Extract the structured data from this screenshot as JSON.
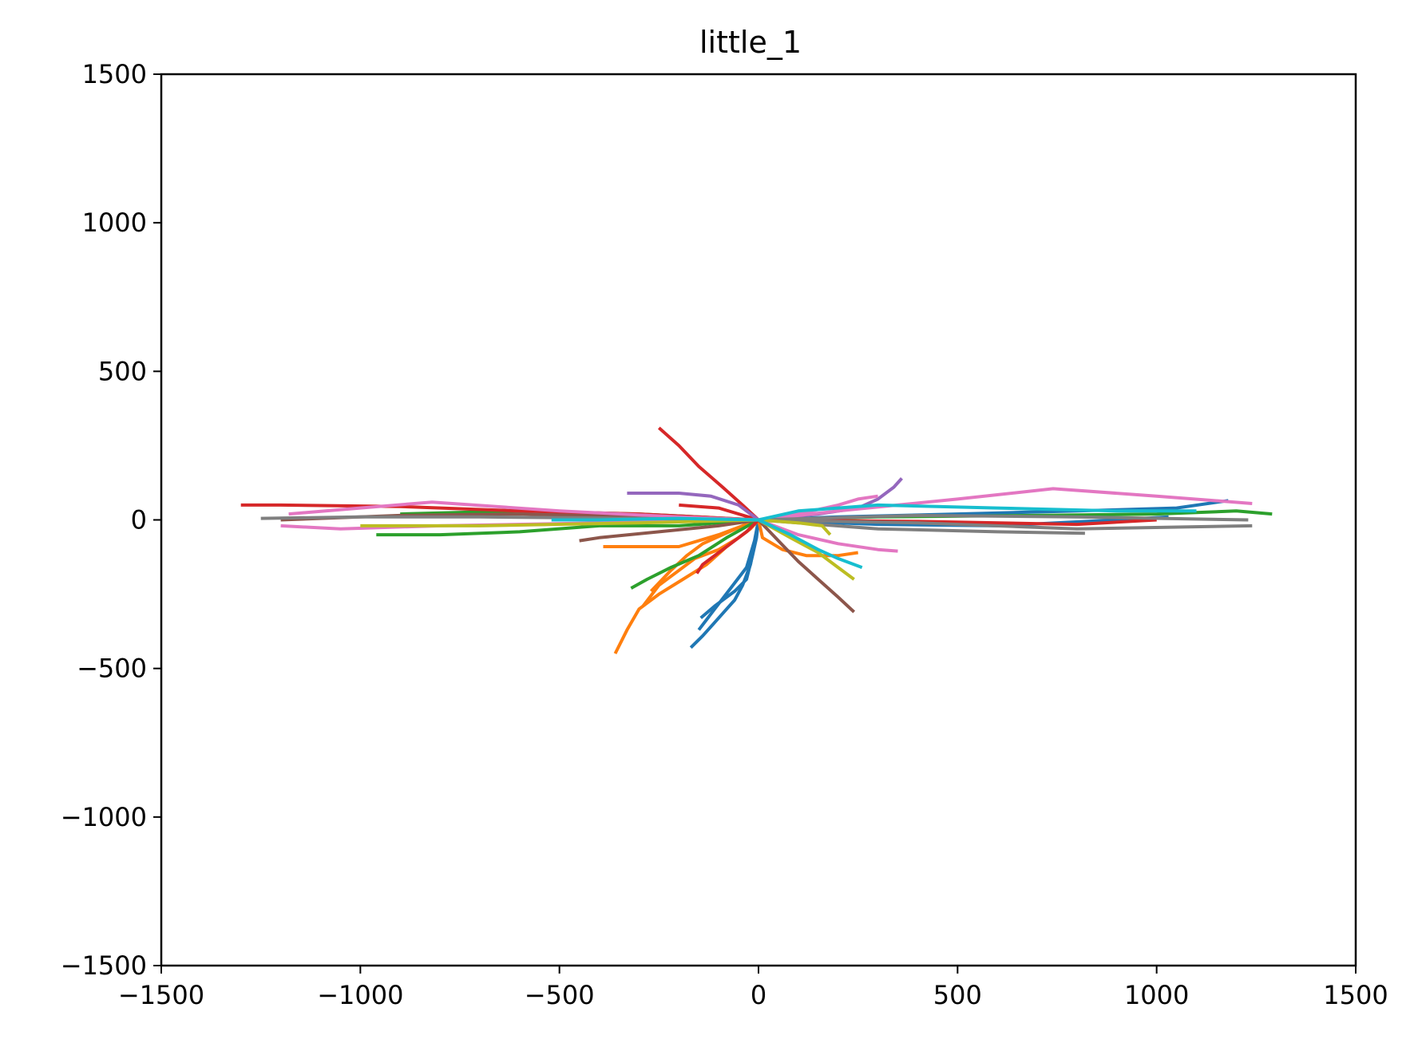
{
  "chart_data": {
    "type": "line",
    "title": "little_1",
    "xlabel": "",
    "ylabel": "",
    "xlim": [
      -1500,
      1500
    ],
    "ylim": [
      -1500,
      1500
    ],
    "grid": false,
    "xticks": [
      -1500,
      -1000,
      -500,
      0,
      500,
      1000,
      1500
    ],
    "yticks": [
      -1500,
      -1000,
      -500,
      0,
      500,
      1000,
      1500
    ],
    "xtick_labels": [
      "−1500",
      "−1000",
      "−500",
      "0",
      "500",
      "1000",
      "1500"
    ],
    "ytick_labels": [
      "−1500",
      "−1000",
      "−500",
      "0",
      "500",
      "1000",
      "1500"
    ],
    "series": [
      {
        "color": "#1f77b4",
        "x": [
          0,
          -10,
          -20,
          -40,
          -60,
          -100,
          -140,
          -170
        ],
        "y": [
          0,
          -80,
          -150,
          -220,
          -270,
          -330,
          -390,
          -430
        ]
      },
      {
        "color": "#1f77b4",
        "x": [
          0,
          -5,
          -15,
          -30,
          -60,
          -110,
          -145
        ],
        "y": [
          0,
          -60,
          -120,
          -200,
          -240,
          -290,
          -330
        ]
      },
      {
        "color": "#1f77b4",
        "x": [
          0,
          -10,
          -30,
          -70,
          -110,
          -150
        ],
        "y": [
          0,
          -70,
          -160,
          -230,
          -300,
          -370
        ]
      },
      {
        "color": "#1f77b4",
        "x": [
          0,
          200,
          500,
          800,
          1050,
          1180
        ],
        "y": [
          0,
          10,
          20,
          30,
          40,
          65
        ]
      },
      {
        "color": "#1f77b4",
        "x": [
          0,
          300,
          600,
          900,
          1030
        ],
        "y": [
          0,
          -15,
          -20,
          0,
          10
        ]
      },
      {
        "color": "#ff7f0e",
        "x": [
          0,
          -30,
          -80,
          -130,
          -190,
          -250,
          -300,
          -330,
          -360
        ],
        "y": [
          0,
          -40,
          -90,
          -150,
          -200,
          -250,
          -300,
          -370,
          -450
        ]
      },
      {
        "color": "#ff7f0e",
        "x": [
          0,
          -20,
          -50,
          -100,
          -160,
          -200,
          -250,
          -290
        ],
        "y": [
          0,
          -30,
          -60,
          -100,
          -130,
          -170,
          -220,
          -290
        ]
      },
      {
        "color": "#ff7f0e",
        "x": [
          0,
          -40,
          -90,
          -140,
          -180,
          -220,
          -270
        ],
        "y": [
          0,
          -20,
          -50,
          -80,
          -120,
          -170,
          -240
        ]
      },
      {
        "color": "#ff7f0e",
        "x": [
          0,
          -100,
          -200,
          -300,
          -390
        ],
        "y": [
          0,
          -50,
          -90,
          -90,
          -90
        ]
      },
      {
        "color": "#ff7f0e",
        "x": [
          0,
          10,
          60,
          120,
          200,
          250
        ],
        "y": [
          0,
          -60,
          -100,
          -120,
          -120,
          -110
        ]
      },
      {
        "color": "#2ca02c",
        "x": [
          0,
          -80,
          -150,
          -220,
          -280,
          -320
        ],
        "y": [
          0,
          -60,
          -120,
          -160,
          -200,
          -230
        ]
      },
      {
        "color": "#2ca02c",
        "x": [
          0,
          -200,
          -400,
          -600,
          -800,
          -960
        ],
        "y": [
          0,
          -20,
          -20,
          -40,
          -50,
          -50
        ]
      },
      {
        "color": "#2ca02c",
        "x": [
          0,
          300,
          700,
          1000,
          1200,
          1290
        ],
        "y": [
          0,
          10,
          15,
          20,
          30,
          20
        ]
      },
      {
        "color": "#2ca02c",
        "x": [
          0,
          -300,
          -600,
          -900
        ],
        "y": [
          0,
          20,
          30,
          20
        ]
      },
      {
        "color": "#d62728",
        "x": [
          0,
          -40,
          -90,
          -150,
          -200,
          -250
        ],
        "y": [
          0,
          50,
          110,
          180,
          250,
          310
        ]
      },
      {
        "color": "#d62728",
        "x": [
          0,
          -30,
          -70,
          -110,
          -140,
          -155
        ],
        "y": [
          0,
          -40,
          -80,
          -120,
          -150,
          -180
        ]
      },
      {
        "color": "#d62728",
        "x": [
          0,
          -300,
          -600,
          -900,
          -1200,
          -1300
        ],
        "y": [
          0,
          20,
          30,
          45,
          50,
          50
        ]
      },
      {
        "color": "#d62728",
        "x": [
          0,
          400,
          800,
          1000
        ],
        "y": [
          0,
          -5,
          -15,
          0
        ]
      },
      {
        "color": "#d62728",
        "x": [
          0,
          -100,
          -200
        ],
        "y": [
          0,
          40,
          50
        ]
      },
      {
        "color": "#9467bd",
        "x": [
          0,
          -50,
          -120,
          -200,
          -270,
          -330
        ],
        "y": [
          0,
          50,
          80,
          90,
          90,
          90
        ]
      },
      {
        "color": "#9467bd",
        "x": [
          0,
          150,
          250,
          300,
          340,
          360
        ],
        "y": [
          0,
          20,
          40,
          70,
          110,
          140
        ]
      },
      {
        "color": "#8c564b",
        "x": [
          0,
          50,
          100,
          150,
          200,
          240
        ],
        "y": [
          0,
          -70,
          -140,
          -200,
          -260,
          -310
        ]
      },
      {
        "color": "#8c564b",
        "x": [
          0,
          -100,
          -250,
          -400,
          -450
        ],
        "y": [
          0,
          -20,
          -40,
          -60,
          -70
        ]
      },
      {
        "color": "#8c564b",
        "x": [
          0,
          -300,
          -600,
          -900,
          -1100,
          -1200
        ],
        "y": [
          0,
          10,
          20,
          15,
          5,
          0
        ]
      },
      {
        "color": "#e377c2",
        "x": [
          0,
          200,
          500,
          740,
          1000,
          1240
        ],
        "y": [
          0,
          30,
          70,
          105,
          80,
          55
        ]
      },
      {
        "color": "#e377c2",
        "x": [
          0,
          -200,
          -500,
          -820,
          -1000,
          -1180
        ],
        "y": [
          0,
          10,
          30,
          60,
          40,
          20
        ]
      },
      {
        "color": "#e377c2",
        "x": [
          0,
          100,
          200,
          300,
          350
        ],
        "y": [
          0,
          -50,
          -80,
          -100,
          -105
        ]
      },
      {
        "color": "#e377c2",
        "x": [
          0,
          100,
          200,
          250,
          300
        ],
        "y": [
          0,
          20,
          50,
          70,
          80
        ]
      },
      {
        "color": "#e377c2",
        "x": [
          0,
          -400,
          -800,
          -1050,
          -1200
        ],
        "y": [
          0,
          -10,
          -20,
          -30,
          -20
        ]
      },
      {
        "color": "#7f7f7f",
        "x": [
          0,
          300,
          600,
          820
        ],
        "y": [
          0,
          -30,
          -40,
          -45
        ]
      },
      {
        "color": "#7f7f7f",
        "x": [
          0,
          400,
          800,
          1240
        ],
        "y": [
          0,
          -10,
          -30,
          -20
        ]
      },
      {
        "color": "#7f7f7f",
        "x": [
          0,
          -300,
          -700,
          -1000,
          -1250
        ],
        "y": [
          0,
          5,
          10,
          10,
          5
        ]
      },
      {
        "color": "#7f7f7f",
        "x": [
          0,
          400,
          800,
          1230
        ],
        "y": [
          0,
          15,
          10,
          0
        ]
      },
      {
        "color": "#bcbd22",
        "x": [
          0,
          80,
          150,
          200,
          240
        ],
        "y": [
          0,
          -60,
          -110,
          -160,
          -200
        ]
      },
      {
        "color": "#bcbd22",
        "x": [
          0,
          100,
          160,
          180
        ],
        "y": [
          0,
          -10,
          -20,
          -50
        ]
      },
      {
        "color": "#bcbd22",
        "x": [
          0,
          -300,
          -700,
          -1000
        ],
        "y": [
          0,
          -10,
          -20,
          -20
        ]
      },
      {
        "color": "#17becf",
        "x": [
          0,
          80,
          150,
          200,
          260
        ],
        "y": [
          0,
          -50,
          -100,
          -130,
          -160
        ]
      },
      {
        "color": "#17becf",
        "x": [
          0,
          100,
          300,
          600,
          900,
          1100
        ],
        "y": [
          0,
          30,
          50,
          40,
          30,
          30
        ]
      },
      {
        "color": "#17becf",
        "x": [
          0,
          -200,
          -400,
          -520
        ],
        "y": [
          0,
          5,
          0,
          0
        ]
      }
    ]
  }
}
